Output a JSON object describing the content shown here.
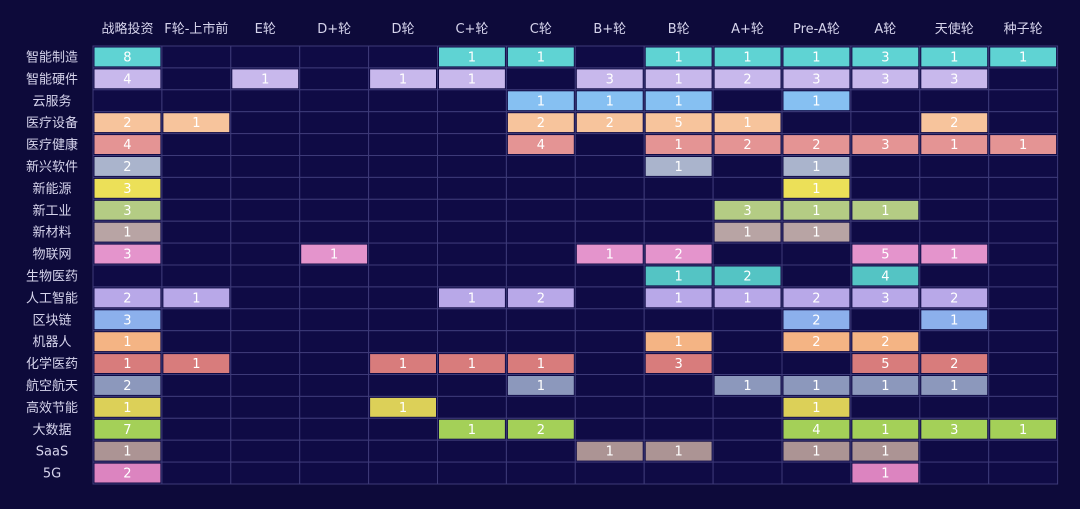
{
  "chart_data": {
    "type": "heatmap",
    "columns": [
      "战略投资",
      "F轮-上市前",
      "E轮",
      "D+轮",
      "D轮",
      "C+轮",
      "C轮",
      "B+轮",
      "B轮",
      "A+轮",
      "Pre-A轮",
      "A轮",
      "天使轮",
      "种子轮"
    ],
    "rows": [
      {
        "name": "智能制造",
        "color": "#5fd3d3",
        "values": [
          8,
          null,
          null,
          null,
          null,
          1,
          1,
          null,
          1,
          1,
          1,
          3,
          1,
          1
        ]
      },
      {
        "name": "智能硬件",
        "color": "#c8b8ec",
        "values": [
          4,
          null,
          1,
          null,
          1,
          1,
          null,
          3,
          1,
          2,
          3,
          3,
          3,
          null
        ]
      },
      {
        "name": "云服务",
        "color": "#86c0f2",
        "values": [
          null,
          null,
          null,
          null,
          null,
          null,
          1,
          1,
          1,
          null,
          1,
          null,
          null,
          null
        ]
      },
      {
        "name": "医疗设备",
        "color": "#f7c49c",
        "values": [
          2,
          1,
          null,
          null,
          null,
          null,
          2,
          2,
          5,
          1,
          null,
          null,
          2,
          null
        ]
      },
      {
        "name": "医疗健康",
        "color": "#e49494",
        "values": [
          4,
          null,
          null,
          null,
          null,
          null,
          4,
          null,
          1,
          2,
          2,
          3,
          1,
          1
        ]
      },
      {
        "name": "新兴软件",
        "color": "#aab4cc",
        "values": [
          2,
          null,
          null,
          null,
          null,
          null,
          null,
          null,
          1,
          null,
          1,
          null,
          null,
          null
        ]
      },
      {
        "name": "新能源",
        "color": "#ece058",
        "values": [
          3,
          null,
          null,
          null,
          null,
          null,
          null,
          null,
          null,
          null,
          1,
          null,
          null,
          null
        ]
      },
      {
        "name": "新工业",
        "color": "#b4cc84",
        "values": [
          3,
          null,
          null,
          null,
          null,
          null,
          null,
          null,
          null,
          3,
          1,
          1,
          null,
          null
        ]
      },
      {
        "name": "新材料",
        "color": "#b8a4a4",
        "values": [
          1,
          null,
          null,
          null,
          null,
          null,
          null,
          null,
          null,
          1,
          1,
          null,
          null,
          null
        ]
      },
      {
        "name": "物联网",
        "color": "#e494cc",
        "values": [
          3,
          null,
          null,
          1,
          null,
          null,
          null,
          1,
          2,
          null,
          null,
          5,
          1,
          null
        ]
      },
      {
        "name": "生物医药",
        "color": "#54c4c4",
        "values": [
          null,
          null,
          null,
          null,
          null,
          null,
          null,
          null,
          1,
          2,
          null,
          4,
          null,
          null
        ]
      },
      {
        "name": "人工智能",
        "color": "#b8a8e8",
        "values": [
          2,
          1,
          null,
          null,
          null,
          1,
          2,
          null,
          1,
          1,
          2,
          3,
          2,
          null
        ]
      },
      {
        "name": "区块链",
        "color": "#8cb0ec",
        "values": [
          3,
          null,
          null,
          null,
          null,
          null,
          null,
          null,
          null,
          null,
          2,
          null,
          1,
          null
        ]
      },
      {
        "name": "机器人",
        "color": "#f4b484",
        "values": [
          1,
          null,
          null,
          null,
          null,
          null,
          null,
          null,
          1,
          null,
          2,
          2,
          null,
          null
        ]
      },
      {
        "name": "化学医药",
        "color": "#d87c7c",
        "values": [
          1,
          1,
          null,
          null,
          1,
          1,
          1,
          null,
          3,
          null,
          null,
          5,
          2,
          null
        ]
      },
      {
        "name": "航空航天",
        "color": "#8c98bc",
        "values": [
          2,
          null,
          null,
          null,
          null,
          null,
          1,
          null,
          null,
          1,
          1,
          1,
          1,
          null
        ]
      },
      {
        "name": "高效节能",
        "color": "#dcd058",
        "values": [
          1,
          null,
          null,
          null,
          1,
          null,
          null,
          null,
          null,
          null,
          1,
          null,
          null,
          null
        ]
      },
      {
        "name": "大数据",
        "color": "#a4d058",
        "values": [
          7,
          null,
          null,
          null,
          null,
          1,
          2,
          null,
          null,
          null,
          4,
          1,
          3,
          1
        ]
      },
      {
        "name": "SaaS",
        "color": "#ac9494",
        "values": [
          1,
          null,
          null,
          null,
          null,
          null,
          null,
          1,
          1,
          null,
          1,
          1,
          null,
          null
        ]
      },
      {
        "name": "5G",
        "color": "#dc84c0",
        "values": [
          2,
          null,
          null,
          null,
          null,
          null,
          null,
          null,
          null,
          null,
          null,
          1,
          null,
          null
        ]
      }
    ]
  }
}
